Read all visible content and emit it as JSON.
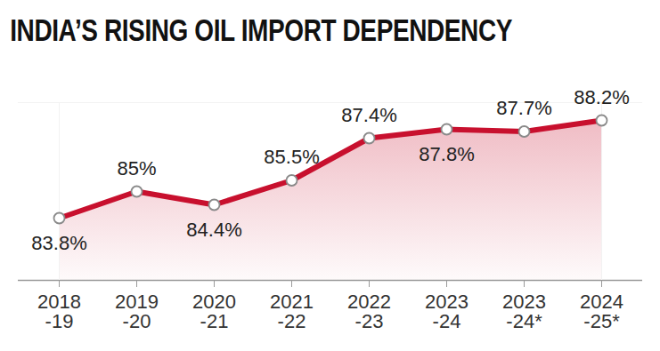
{
  "chart_data": {
    "type": "line",
    "title": "INDIA’S RISING OIL IMPORT DEPENDENCY",
    "categories": [
      "2018\n-19",
      "2019\n-20",
      "2020\n-21",
      "2021\n-22",
      "2022\n-23",
      "2023\n-24",
      "2023\n-24*",
      "2024\n-25*"
    ],
    "values": [
      83.8,
      85,
      84.4,
      85.5,
      87.4,
      87.8,
      87.7,
      88.2
    ],
    "value_labels": [
      "83.8%",
      "85%",
      "84.4%",
      "85.5%",
      "87.4%",
      "87.8%",
      "87.7%",
      "88.2%"
    ],
    "color": "#c8102e",
    "ylim": [
      81,
      89
    ],
    "grid": false,
    "data_labels": true,
    "tick_labels": "x",
    "marker": "circle"
  }
}
